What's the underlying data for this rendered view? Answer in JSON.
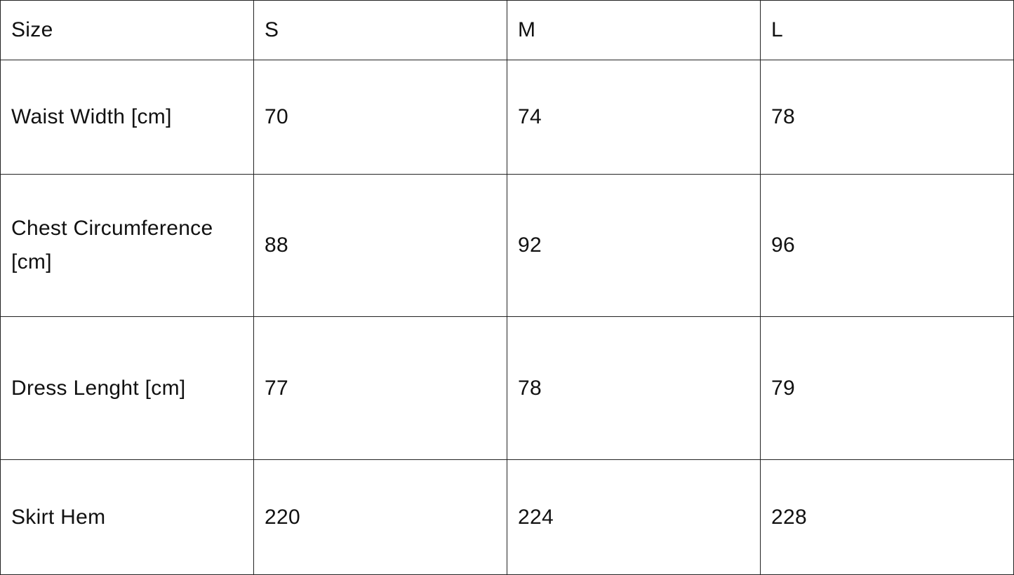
{
  "table": {
    "header": [
      "Size",
      "S",
      "M",
      "L"
    ],
    "rows": [
      [
        "Waist Width [cm]",
        "70",
        "74",
        "78"
      ],
      [
        "Chest Circumference [cm]",
        "88",
        "92",
        "96"
      ],
      [
        "Dress Lenght [cm]",
        "77",
        "78",
        "79"
      ],
      [
        "Skirt Hem",
        "220",
        "224",
        "228"
      ]
    ]
  }
}
